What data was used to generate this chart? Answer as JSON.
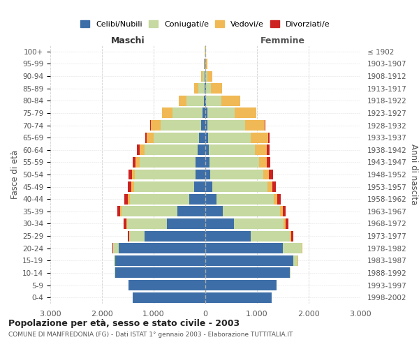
{
  "age_groups": [
    "0-4",
    "5-9",
    "10-14",
    "15-19",
    "20-24",
    "25-29",
    "30-34",
    "35-39",
    "40-44",
    "45-49",
    "50-54",
    "55-59",
    "60-64",
    "65-69",
    "70-74",
    "75-79",
    "80-84",
    "85-89",
    "90-94",
    "95-99",
    "100+"
  ],
  "birth_years": [
    "1998-2002",
    "1993-1997",
    "1988-1992",
    "1983-1987",
    "1978-1982",
    "1973-1977",
    "1968-1972",
    "1963-1967",
    "1958-1962",
    "1953-1957",
    "1948-1952",
    "1943-1947",
    "1938-1942",
    "1933-1937",
    "1928-1932",
    "1923-1927",
    "1918-1922",
    "1913-1917",
    "1908-1912",
    "1903-1907",
    "≤ 1902"
  ],
  "males": {
    "celibe": [
      1400,
      1480,
      1750,
      1750,
      1680,
      1180,
      750,
      540,
      310,
      210,
      190,
      185,
      155,
      120,
      80,
      55,
      30,
      20,
      12,
      8,
      4
    ],
    "coniugato": [
      2,
      3,
      5,
      18,
      100,
      290,
      760,
      1080,
      1150,
      1170,
      1170,
      1090,
      1020,
      880,
      780,
      580,
      340,
      120,
      45,
      12,
      4
    ],
    "vedovo": [
      0,
      0,
      0,
      1,
      4,
      8,
      18,
      28,
      40,
      50,
      60,
      75,
      100,
      140,
      200,
      200,
      140,
      75,
      28,
      8,
      2
    ],
    "divorziato": [
      0,
      0,
      0,
      2,
      8,
      25,
      50,
      60,
      65,
      70,
      65,
      60,
      45,
      28,
      12,
      8,
      5,
      3,
      1,
      0,
      0
    ]
  },
  "females": {
    "nubile": [
      1280,
      1380,
      1640,
      1700,
      1500,
      880,
      550,
      340,
      210,
      130,
      95,
      80,
      65,
      55,
      45,
      35,
      20,
      12,
      6,
      4,
      2
    ],
    "coniugata": [
      2,
      3,
      5,
      90,
      360,
      760,
      960,
      1100,
      1110,
      1070,
      1020,
      960,
      900,
      820,
      720,
      530,
      290,
      100,
      40,
      12,
      3
    ],
    "vedova": [
      0,
      0,
      0,
      2,
      12,
      22,
      38,
      55,
      75,
      95,
      120,
      150,
      220,
      340,
      390,
      420,
      360,
      210,
      90,
      28,
      5
    ],
    "divorziata": [
      0,
      0,
      0,
      2,
      12,
      38,
      60,
      60,
      65,
      70,
      75,
      70,
      55,
      25,
      12,
      6,
      4,
      2,
      1,
      0,
      0
    ]
  },
  "colors": {
    "celibe": "#3d6ea8",
    "coniugato": "#c5d9a0",
    "vedovo": "#f0b955",
    "divorziato": "#cc2222"
  },
  "legend_labels": [
    "Celibi/Nubili",
    "Coniugati/e",
    "Vedovi/e",
    "Divorziati/e"
  ],
  "title": "Popolazione per età, sesso e stato civile - 2003",
  "subtitle": "COMUNE DI MANFREDONIA (FG) - Dati ISTAT 1° gennaio 2003 - Elaborazione TUTTITALIA.IT",
  "xlabel_left": "Maschi",
  "xlabel_right": "Femmine",
  "ylabel_left": "Fasce di età",
  "ylabel_right": "Anni di nascita",
  "xlim": 3000,
  "xtick_vals": [
    -3000,
    -2000,
    -1000,
    0,
    1000,
    2000,
    3000
  ],
  "xtick_labels": [
    "3.000",
    "2.000",
    "1.000",
    "0",
    "1.000",
    "2.000",
    "3.000"
  ],
  "background_color": "#ffffff",
  "grid_color": "#cccccc"
}
